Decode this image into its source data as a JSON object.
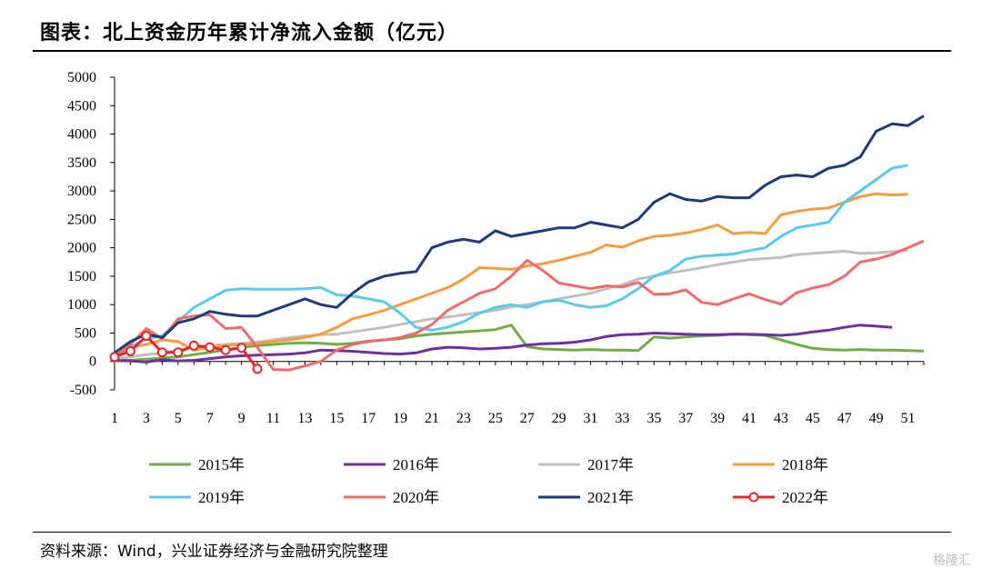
{
  "title": "图表：北上资金历年累计净流入金额（亿元）",
  "source": "资料来源：Wind，兴业证券经济与金融研究院整理",
  "watermark": "格隆汇",
  "chart_data": {
    "type": "line",
    "title": "图表：北上资金历年累计净流入金额（亿元）",
    "xlabel": "",
    "ylabel": "",
    "xlim": [
      1,
      52
    ],
    "ylim": [
      -500,
      5000
    ],
    "x_ticks": [
      1,
      3,
      5,
      7,
      9,
      11,
      13,
      15,
      17,
      19,
      21,
      23,
      25,
      27,
      29,
      31,
      33,
      35,
      37,
      39,
      41,
      43,
      45,
      47,
      49,
      51
    ],
    "y_ticks": [
      -500,
      0,
      500,
      1000,
      1500,
      2000,
      2500,
      3000,
      3500,
      4000,
      4500,
      5000
    ],
    "grid": false,
    "legend_position": "bottom",
    "series": [
      {
        "name": "2015年",
        "color": "#70ad47",
        "marker": false,
        "values": [
          30,
          20,
          40,
          60,
          80,
          120,
          160,
          200,
          250,
          280,
          300,
          320,
          330,
          320,
          300,
          320,
          360,
          380,
          400,
          450,
          480,
          500,
          520,
          540,
          560,
          640,
          260,
          220,
          210,
          200,
          210,
          200,
          200,
          190,
          430,
          410,
          430,
          450,
          460,
          480,
          470,
          460,
          380,
          300,
          230,
          210,
          200,
          210,
          200,
          200,
          190,
          185
        ]
      },
      {
        "name": "2016年",
        "color": "#7030a0",
        "marker": false,
        "values": [
          20,
          10,
          -10,
          30,
          10,
          20,
          50,
          80,
          100,
          110,
          120,
          130,
          150,
          200,
          190,
          180,
          160,
          140,
          130,
          150,
          220,
          250,
          240,
          220,
          230,
          250,
          290,
          310,
          320,
          340,
          380,
          440,
          470,
          480,
          500,
          490,
          480,
          470,
          470,
          480,
          480,
          470,
          460,
          480,
          520,
          550,
          600,
          640,
          620,
          600
        ]
      },
      {
        "name": "2017年",
        "color": "#bfbfbf",
        "marker": false,
        "values": [
          50,
          80,
          120,
          150,
          200,
          250,
          280,
          300,
          320,
          340,
          380,
          420,
          450,
          470,
          480,
          520,
          560,
          600,
          650,
          700,
          750,
          780,
          820,
          860,
          900,
          960,
          1000,
          1050,
          1100,
          1150,
          1200,
          1280,
          1350,
          1450,
          1500,
          1560,
          1600,
          1650,
          1700,
          1750,
          1790,
          1810,
          1830,
          1880,
          1900,
          1920,
          1940,
          1900,
          1910,
          1930,
          1960
        ]
      },
      {
        "name": "2018年",
        "color": "#f79b3f",
        "marker": false,
        "values": [
          100,
          250,
          300,
          380,
          350,
          200,
          250,
          280,
          300,
          320,
          350,
          380,
          420,
          480,
          600,
          750,
          820,
          900,
          1000,
          1100,
          1200,
          1300,
          1450,
          1650,
          1640,
          1620,
          1680,
          1720,
          1780,
          1850,
          1920,
          2050,
          2010,
          2120,
          2200,
          2220,
          2260,
          2320,
          2400,
          2250,
          2270,
          2250,
          2580,
          2640,
          2680,
          2700,
          2800,
          2900,
          2950,
          2930,
          2940
        ]
      },
      {
        "name": "2019年",
        "color": "#5bc8f0",
        "marker": false,
        "values": [
          100,
          250,
          400,
          450,
          700,
          950,
          1100,
          1250,
          1280,
          1270,
          1270,
          1270,
          1280,
          1300,
          1170,
          1150,
          1100,
          1050,
          850,
          600,
          550,
          600,
          700,
          850,
          950,
          1000,
          950,
          1050,
          1080,
          1000,
          950,
          980,
          1100,
          1280,
          1500,
          1600,
          1800,
          1850,
          1870,
          1890,
          1950,
          2000,
          2200,
          2350,
          2400,
          2450,
          2800,
          3000,
          3200,
          3400,
          3450
        ]
      },
      {
        "name": "2020年",
        "color": "#f26a6a",
        "marker": false,
        "values": [
          80,
          300,
          580,
          400,
          750,
          800,
          820,
          580,
          600,
          250,
          -140,
          -150,
          -80,
          0,
          200,
          300,
          350,
          380,
          420,
          500,
          650,
          900,
          1050,
          1200,
          1280,
          1500,
          1780,
          1600,
          1380,
          1330,
          1280,
          1330,
          1310,
          1390,
          1180,
          1190,
          1260,
          1040,
          1000,
          1100,
          1190,
          1090,
          1010,
          1210,
          1290,
          1350,
          1500,
          1750,
          1800,
          1880,
          2000,
          2120
        ]
      },
      {
        "name": "2021年",
        "color": "#1f3a7c",
        "marker": false,
        "values": [
          150,
          350,
          480,
          420,
          680,
          750,
          880,
          830,
          800,
          800,
          900,
          1000,
          1100,
          1000,
          950,
          1200,
          1400,
          1500,
          1550,
          1580,
          2000,
          2100,
          2150,
          2100,
          2300,
          2200,
          2250,
          2300,
          2350,
          2350,
          2450,
          2400,
          2350,
          2500,
          2800,
          2950,
          2850,
          2820,
          2900,
          2880,
          2880,
          3100,
          3250,
          3280,
          3250,
          3400,
          3450,
          3600,
          4050,
          4180,
          4150,
          4320
        ]
      },
      {
        "name": "2022年",
        "color": "#e8262a",
        "marker": true,
        "values": [
          80,
          180,
          450,
          160,
          160,
          280,
          250,
          200,
          240,
          -130
        ]
      }
    ]
  }
}
